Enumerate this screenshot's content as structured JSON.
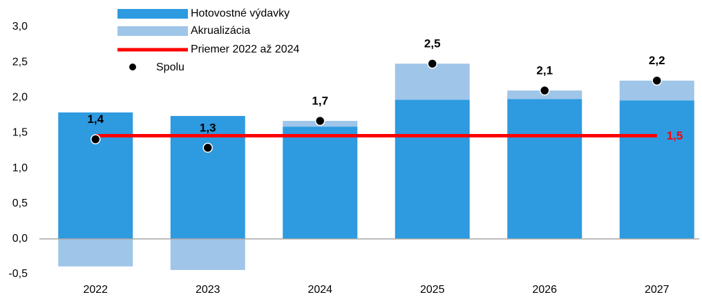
{
  "chart_data": {
    "type": "bar",
    "categories": [
      "2022",
      "2023",
      "2024",
      "2025",
      "2026",
      "2027"
    ],
    "series": [
      {
        "name": "Hotovostné výdavky",
        "color": "#2e9ae0",
        "values": [
          1.79,
          1.74,
          1.59,
          1.97,
          1.98,
          1.96
        ]
      },
      {
        "name": "Akrualizácia",
        "color": "#9fc5e8",
        "values": [
          -0.39,
          -0.44,
          0.08,
          0.51,
          0.12,
          0.28
        ]
      }
    ],
    "average": {
      "name": "Priemer 2022 až 2024",
      "color": "#ff0000",
      "value": 1.46,
      "value_label": "1,5"
    },
    "total": {
      "name": "Spolu",
      "color": "#000000",
      "values": [
        1.41,
        1.29,
        1.67,
        2.48,
        2.1,
        2.24
      ],
      "value_labels": [
        "1,4",
        "1,3",
        "1,7",
        "2,5",
        "2,1",
        "2,2"
      ]
    },
    "ylim": [
      -0.5,
      3.0
    ],
    "yticks": [
      {
        "value": -0.5,
        "label": "-0,5"
      },
      {
        "value": 0,
        "label": "0,0"
      },
      {
        "value": 0.5,
        "label": "0,5"
      },
      {
        "value": 1,
        "label": "1,0"
      },
      {
        "value": 1.5,
        "label": "1,5"
      },
      {
        "value": 2,
        "label": "2,0"
      },
      {
        "value": 2.5,
        "label": "2,5"
      },
      {
        "value": 3,
        "label": "3,0"
      }
    ],
    "grid": false
  }
}
